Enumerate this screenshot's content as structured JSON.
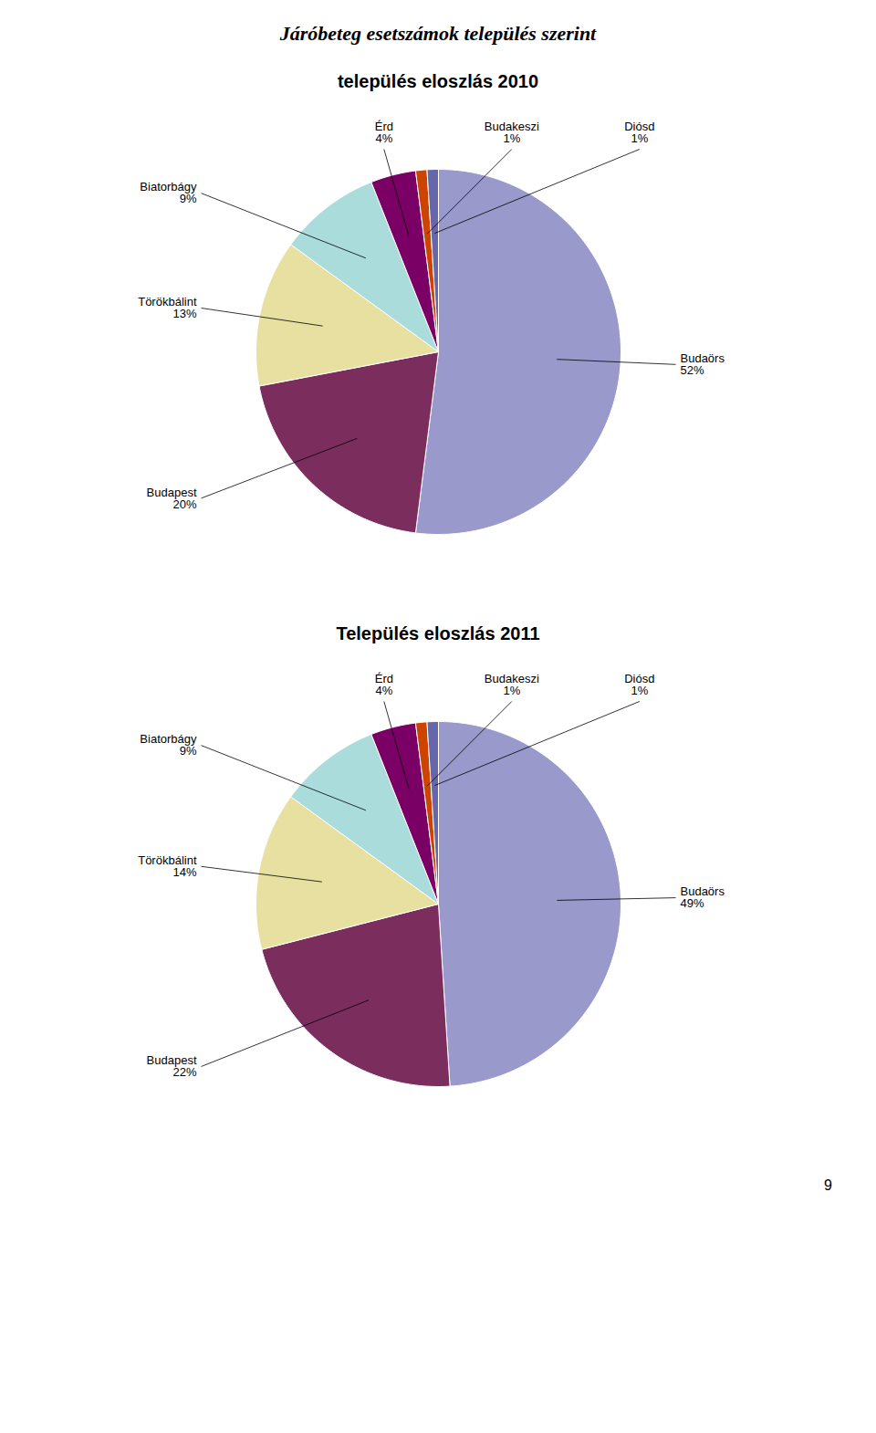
{
  "title": "Járóbeteg esetszámok település szerint",
  "annotations": [
    "9"
  ],
  "chart_data": [
    {
      "type": "pie",
      "title": "település eloszlás 2010",
      "categories": [
        "Budaörs",
        "Budapest",
        "Törökbálint",
        "Biatorbágy",
        "Érd",
        "Budakeszi",
        "Diósd"
      ],
      "values": [
        52,
        20,
        13,
        9,
        4,
        1,
        1
      ],
      "value_labels": [
        "52%",
        "20%",
        "13%",
        "9%",
        "4%",
        "1%",
        "1%"
      ],
      "colors": [
        "#9999cc",
        "#7b2d5e",
        "#e8e0a0",
        "#aadcdc",
        "#7b0066",
        "#cc4400",
        "#6666aa"
      ],
      "data_labels": true
    },
    {
      "type": "pie",
      "title": "Település eloszlás 2011",
      "categories": [
        "Budaörs",
        "Budapest",
        "Törökbálint",
        "Biatorbágy",
        "Érd",
        "Budakeszi",
        "Diósd"
      ],
      "values": [
        49,
        22,
        14,
        9,
        4,
        1,
        1
      ],
      "value_labels": [
        "49%",
        "22%",
        "14%",
        "9%",
        "4%",
        "1%",
        "1%"
      ],
      "colors": [
        "#9999cc",
        "#7b2d5e",
        "#e8e0a0",
        "#aadcdc",
        "#7b0066",
        "#cc4400",
        "#6666aa"
      ],
      "data_labels": true
    }
  ]
}
